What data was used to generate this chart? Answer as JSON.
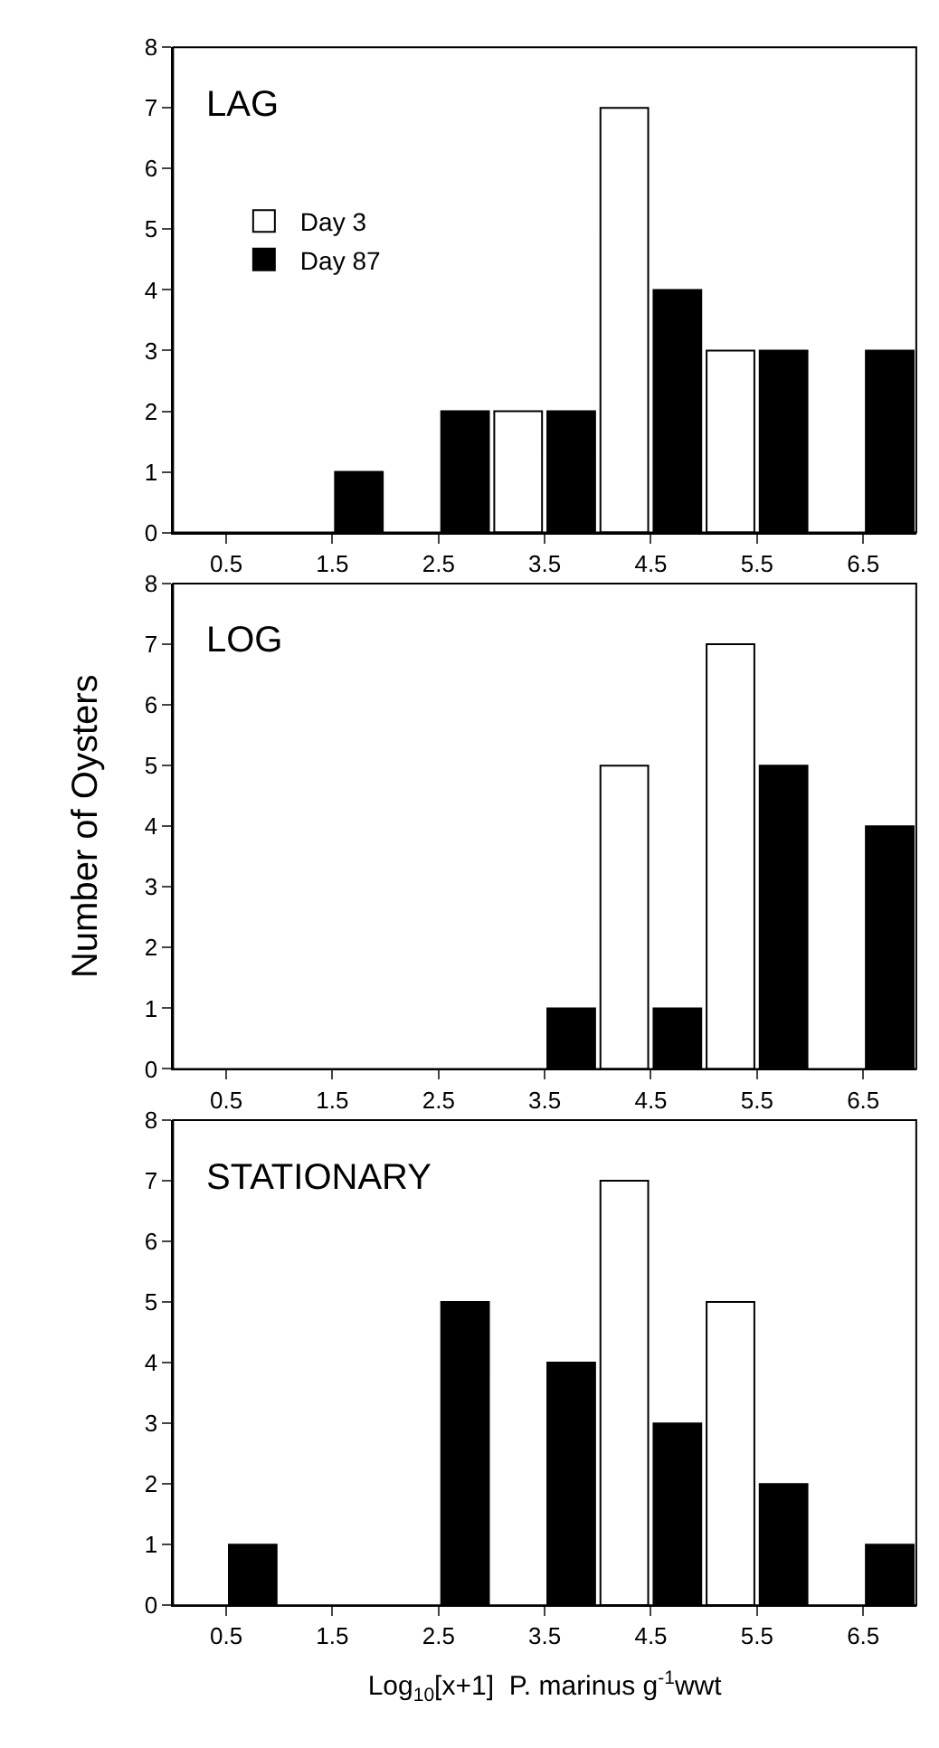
{
  "chart_data": [
    {
      "type": "bar",
      "title": "LAG",
      "categories": [
        "0.5",
        "1.5",
        "2.5",
        "3.5",
        "4.5",
        "5.5",
        "6.5"
      ],
      "series": [
        {
          "name": "Day 3",
          "color": "#ffffff",
          "values": [
            0,
            0,
            0,
            2,
            7,
            3,
            0
          ]
        },
        {
          "name": "Day 87",
          "color": "#000000",
          "values": [
            0,
            1,
            2,
            2,
            4,
            3,
            3
          ]
        }
      ],
      "ylim": [
        0,
        8
      ],
      "yticks": [
        0,
        1,
        2,
        3,
        4,
        5,
        6,
        7,
        8
      ],
      "legend": "top left"
    },
    {
      "type": "bar",
      "title": "LOG",
      "ylabel": "Number of Oysters",
      "categories": [
        "0.5",
        "1.5",
        "2.5",
        "3.5",
        "4.5",
        "5.5",
        "6.5"
      ],
      "series": [
        {
          "color": "#ffffff",
          "values": [
            0,
            0,
            0,
            0,
            5,
            7,
            0
          ]
        },
        {
          "color": "#000000",
          "values": [
            0,
            0,
            0,
            1,
            1,
            5,
            4
          ]
        }
      ],
      "ylim": [
        0,
        8
      ],
      "yticks": [
        0,
        1,
        2,
        3,
        4,
        5,
        6,
        7,
        8
      ]
    },
    {
      "type": "bar",
      "title": "STATIONARY",
      "xlabel": "Log$_{10}$[x+1]  P. marinus g$^{-1}$wwt",
      "categories": [
        "0.5",
        "1.5",
        "2.5",
        "3.5",
        "4.5",
        "5.5",
        "6.5"
      ],
      "series": [
        {
          "color": "#ffffff",
          "values": [
            0,
            0,
            0,
            0,
            7,
            5,
            0
          ]
        },
        {
          "color": "#000000",
          "values": [
            1,
            0,
            5,
            4,
            3,
            2,
            1
          ]
        }
      ],
      "ylim": [
        0,
        8
      ],
      "yticks": [
        0,
        1,
        2,
        3,
        4,
        5,
        6,
        7,
        8
      ]
    }
  ]
}
